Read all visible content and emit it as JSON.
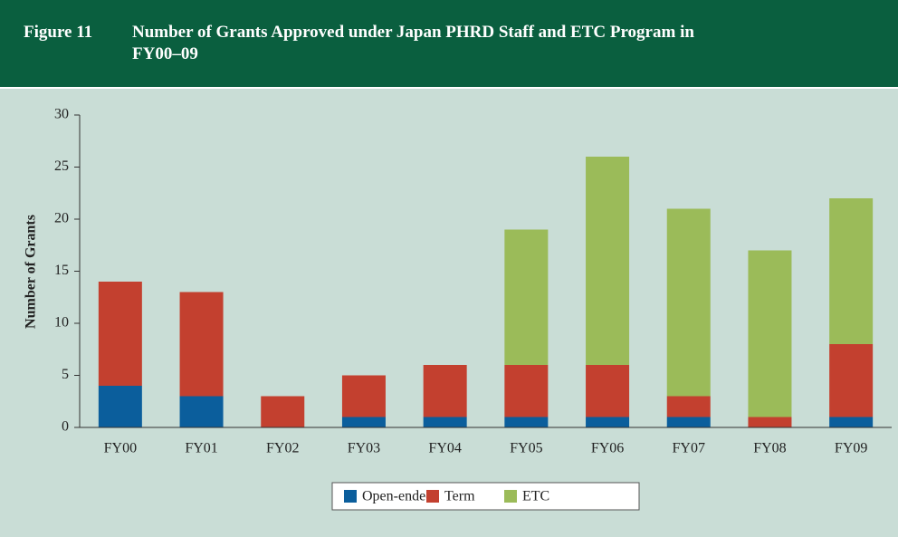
{
  "figure_label": "Figure 11",
  "chart_data": {
    "type": "stacked_bar",
    "title": "Number of Grants Approved under Japan PHRD Staff and ETC Program in FY00–09",
    "y_label": "Number of Grants",
    "categories": [
      "FY00",
      "FY01",
      "FY02",
      "FY03",
      "FY04",
      "FY05",
      "FY06",
      "FY07",
      "FY08",
      "FY09"
    ],
    "series": [
      {
        "name": "Open-ended",
        "color": "#0b5e9c",
        "values": [
          4,
          3,
          0,
          1,
          1,
          1,
          1,
          1,
          0,
          1
        ]
      },
      {
        "name": "Term",
        "color": "#c3402f",
        "values": [
          10,
          10,
          3,
          4,
          5,
          5,
          5,
          2,
          1,
          7
        ]
      },
      {
        "name": "ETC",
        "color": "#9bbb59",
        "values": [
          0,
          0,
          0,
          0,
          0,
          13,
          20,
          18,
          16,
          14
        ]
      }
    ],
    "ylim": [
      0,
      30
    ],
    "yticks": [
      0,
      5,
      10,
      15,
      20,
      25,
      30
    ],
    "grid": false,
    "legend": "bottom"
  }
}
